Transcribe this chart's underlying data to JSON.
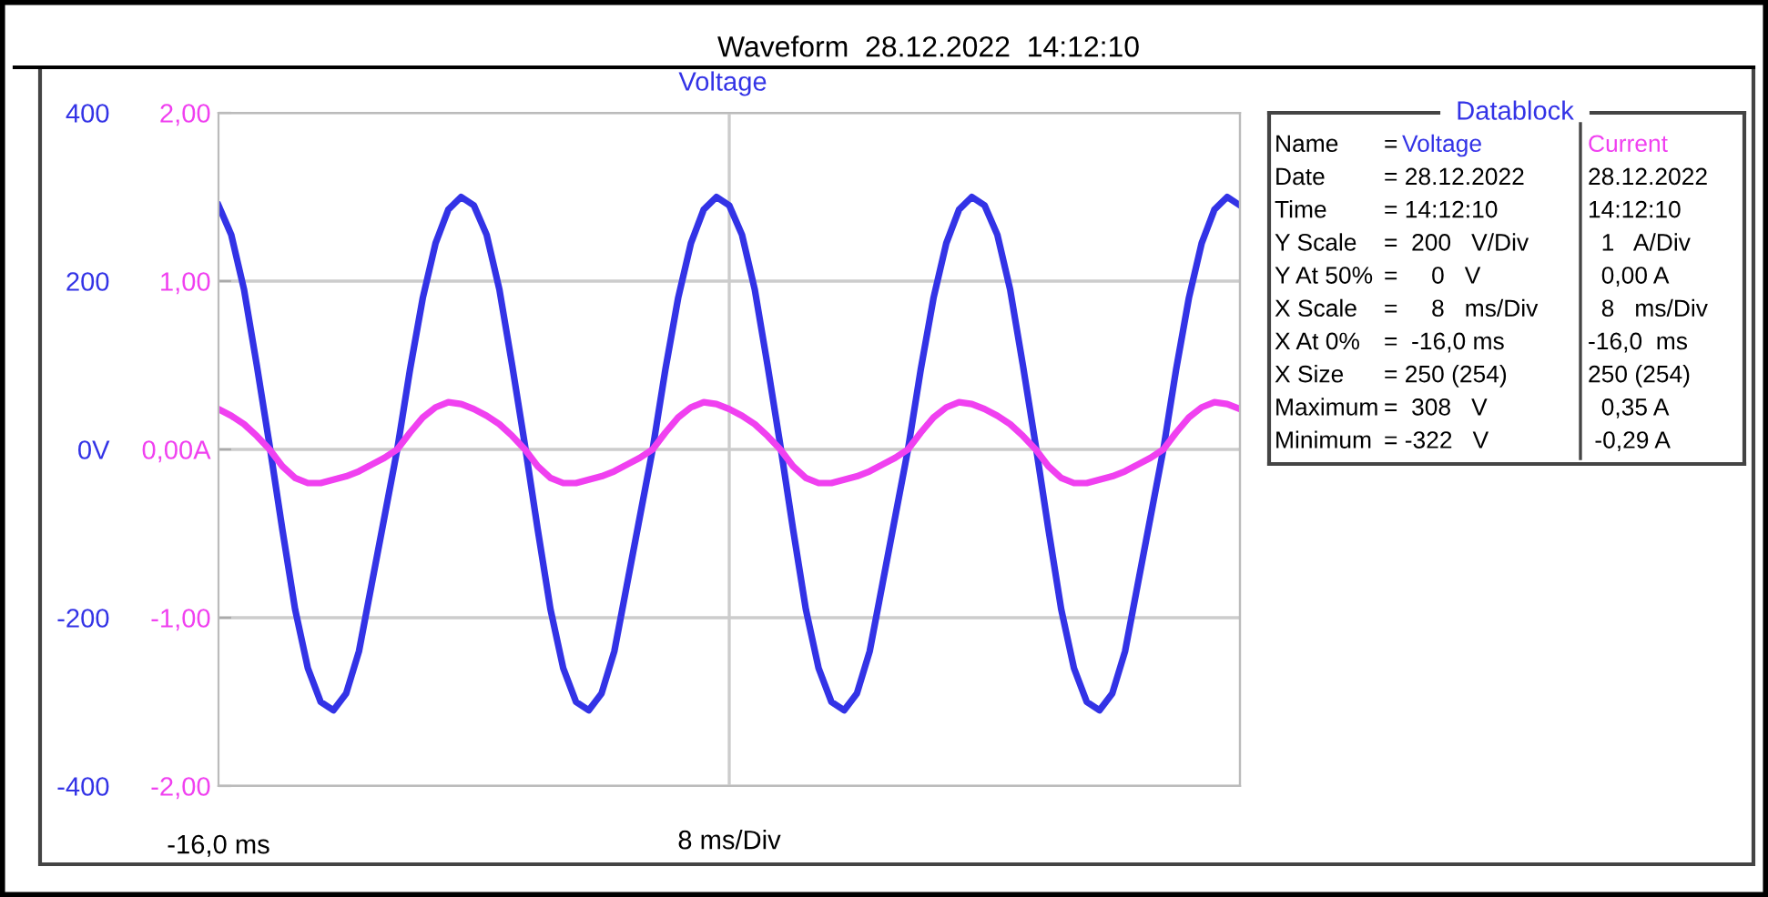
{
  "chart_data": {
    "type": "line",
    "title": "Waveform  28.12.2022  14:12:10",
    "subtitle": "Voltage",
    "xlabel": "8 ms/Div",
    "categories": [
      null,
      null,
      null,
      null,
      null,
      null,
      null,
      null,
      null,
      null,
      null,
      null,
      null,
      null,
      null,
      null,
      null,
      null,
      null,
      null,
      null,
      null,
      null,
      null,
      null,
      null,
      null,
      null,
      null,
      null,
      null,
      null,
      null,
      null,
      null,
      null,
      null,
      null,
      null,
      null,
      null,
      null,
      null,
      null,
      null,
      null,
      null,
      null,
      null,
      null,
      null,
      null,
      null,
      null,
      null,
      null,
      null,
      null,
      null,
      null,
      null,
      null,
      null,
      null,
      null,
      null,
      null,
      null,
      null,
      null,
      null,
      null,
      null,
      null,
      null,
      null,
      null,
      null,
      null,
      null,
      null
    ],
    "series": [
      {
        "name": "Voltage",
        "color": "#3333e6",
        "values": [
          290,
          255,
          190,
          100,
          5,
          -95,
          -190,
          -260,
          -300,
          -310,
          -290,
          -240,
          -160,
          -80,
          0,
          95,
          180,
          245,
          285,
          300,
          290,
          255,
          190,
          100,
          5,
          -95,
          -190,
          -260,
          -300,
          -310,
          -290,
          -240,
          -160,
          -80,
          0,
          95,
          180,
          245,
          285,
          300,
          290,
          255,
          190,
          100,
          5,
          -95,
          -190,
          -260,
          -300,
          -310,
          -290,
          -240,
          -160,
          -80,
          0,
          95,
          180,
          245,
          285,
          300,
          290,
          255,
          190,
          100,
          5,
          -95,
          -190,
          -260,
          -300,
          -310,
          -290,
          -240,
          -160,
          -80,
          0,
          95,
          180,
          245,
          285,
          300,
          290
        ]
      },
      {
        "name": "Current",
        "color": "#f040f0",
        "axis": "y2",
        "values": [
          0.24,
          0.2,
          0.15,
          0.08,
          0.0,
          -0.1,
          -0.17,
          -0.2,
          -0.2,
          -0.18,
          -0.16,
          -0.13,
          -0.09,
          -0.05,
          0.0,
          0.1,
          0.19,
          0.25,
          0.28,
          0.27,
          0.24,
          0.2,
          0.15,
          0.08,
          0.0,
          -0.1,
          -0.17,
          -0.2,
          -0.2,
          -0.18,
          -0.16,
          -0.13,
          -0.09,
          -0.05,
          0.0,
          0.1,
          0.19,
          0.25,
          0.28,
          0.27,
          0.24,
          0.2,
          0.15,
          0.08,
          0.0,
          -0.1,
          -0.17,
          -0.2,
          -0.2,
          -0.18,
          -0.16,
          -0.13,
          -0.09,
          -0.05,
          0.0,
          0.1,
          0.19,
          0.25,
          0.28,
          0.27,
          0.24,
          0.2,
          0.15,
          0.08,
          0.0,
          -0.1,
          -0.17,
          -0.2,
          -0.2,
          -0.18,
          -0.16,
          -0.13,
          -0.09,
          -0.05,
          0.0,
          0.1,
          0.19,
          0.25,
          0.28,
          0.27,
          0.24
        ]
      }
    ],
    "ylim": [
      -400,
      400
    ],
    "yticks": [
      -400,
      -200,
      {
        "value": 0,
        "label": "0V"
      },
      200,
      400
    ],
    "y2lim": [
      -2,
      2
    ],
    "y2ticks": [
      {
        "value": -2,
        "label": "-2,00"
      },
      {
        "value": -1,
        "label": "-1,00"
      },
      {
        "value": 0,
        "label": "0,00A"
      },
      {
        "value": 1,
        "label": "1,00"
      },
      {
        "value": 2,
        "label": "2,00"
      }
    ],
    "grid": true,
    "legend": false,
    "annotations": [
      "-16,0 ms",
      "Datablock",
      "Name",
      "=",
      "Date",
      "= 28.12.2022",
      "28.12.2022",
      "Time",
      "= 14:12:10",
      "14:12:10",
      "Y Scale",
      "=  200   V/Div",
      "  1   A/Div",
      "Y At 50%",
      "=     0   V",
      "  0,00 A",
      "X Scale",
      "=     8   ms/Div",
      "  8   ms/Div",
      "X At 0%",
      "=  -16,0 ms",
      "-16,0  ms",
      "X Size",
      "= 250 (254)",
      "250 (254)",
      "Maximum",
      "=  308   V",
      "  0,35 A",
      "Minimum",
      "= -322   V",
      " -0,29 A"
    ]
  }
}
